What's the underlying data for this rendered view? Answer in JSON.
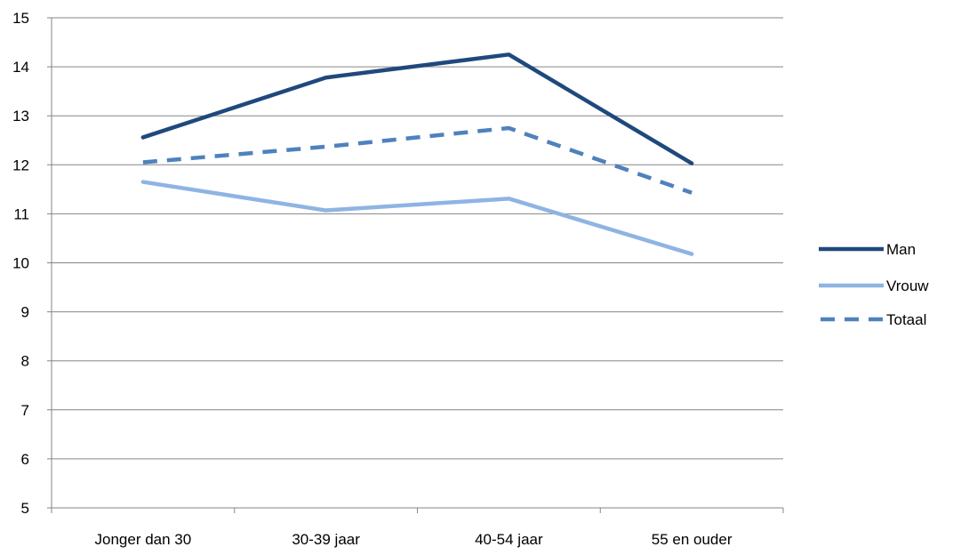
{
  "chart_data": {
    "type": "line",
    "title": "",
    "xlabel": "",
    "ylabel": "",
    "categories": [
      "Jonger dan 30",
      "30-39 jaar",
      "40-54 jaar",
      "55 en ouder"
    ],
    "ylim": [
      5,
      15
    ],
    "yticks": [
      5,
      6,
      7,
      8,
      9,
      10,
      11,
      12,
      13,
      14,
      15
    ],
    "grid": true,
    "legend_position": "right",
    "series": [
      {
        "name": "Man",
        "values": [
          12.56,
          13.78,
          14.25,
          12.03
        ],
        "color": "#1f497d",
        "dash": "solid"
      },
      {
        "name": "Vrouw",
        "values": [
          11.65,
          11.07,
          11.31,
          10.18
        ],
        "color": "#8eb4e3",
        "dash": "solid"
      },
      {
        "name": "Totaal",
        "values": [
          12.05,
          12.37,
          12.75,
          11.43
        ],
        "color": "#4f81bd",
        "dash": "dashed"
      }
    ]
  }
}
